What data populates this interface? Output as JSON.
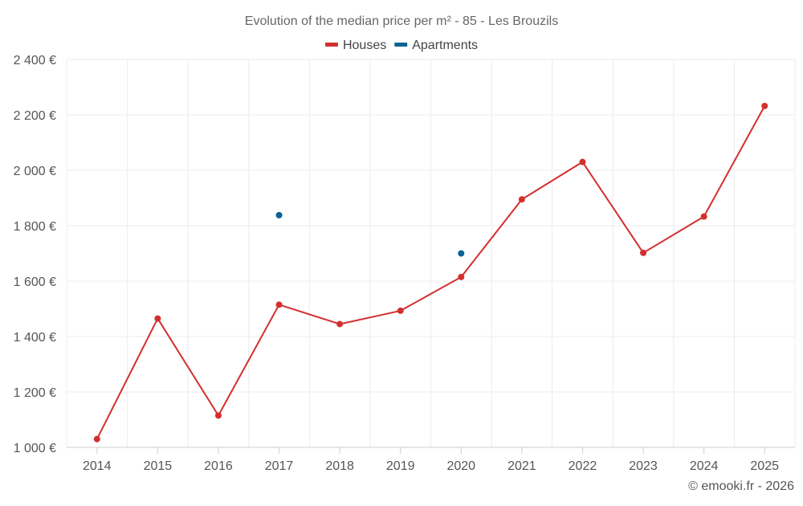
{
  "chart_data": {
    "type": "line",
    "title": "Evolution of the median price per m² - 85 - Les Brouzils",
    "xlabel": "",
    "ylabel": "",
    "categories": [
      "2014",
      "2015",
      "2016",
      "2017",
      "2018",
      "2019",
      "2020",
      "2021",
      "2022",
      "2023",
      "2024",
      "2025"
    ],
    "ylim": [
      1000,
      2400
    ],
    "yticks": [
      1000,
      1200,
      1400,
      1600,
      1800,
      2000,
      2200,
      2400
    ],
    "ytick_labels": [
      "1 000 €",
      "1 200 €",
      "1 400 €",
      "1 600 €",
      "1 800 €",
      "2 000 €",
      "2 200 €",
      "2 400 €"
    ],
    "grid": true,
    "legend_position": "top-center",
    "series": [
      {
        "name": "Houses",
        "color": "#d32f2f",
        "values": [
          1030,
          1465,
          1115,
          1515,
          1445,
          1493,
          1615,
          1895,
          2030,
          1702,
          1833,
          2232
        ]
      },
      {
        "name": "Apartments",
        "color": "#0a6296",
        "values": [
          null,
          null,
          null,
          1838,
          null,
          null,
          1700,
          null,
          null,
          null,
          null,
          null
        ]
      }
    ],
    "annotation": "© emooki.fr - 2026"
  }
}
